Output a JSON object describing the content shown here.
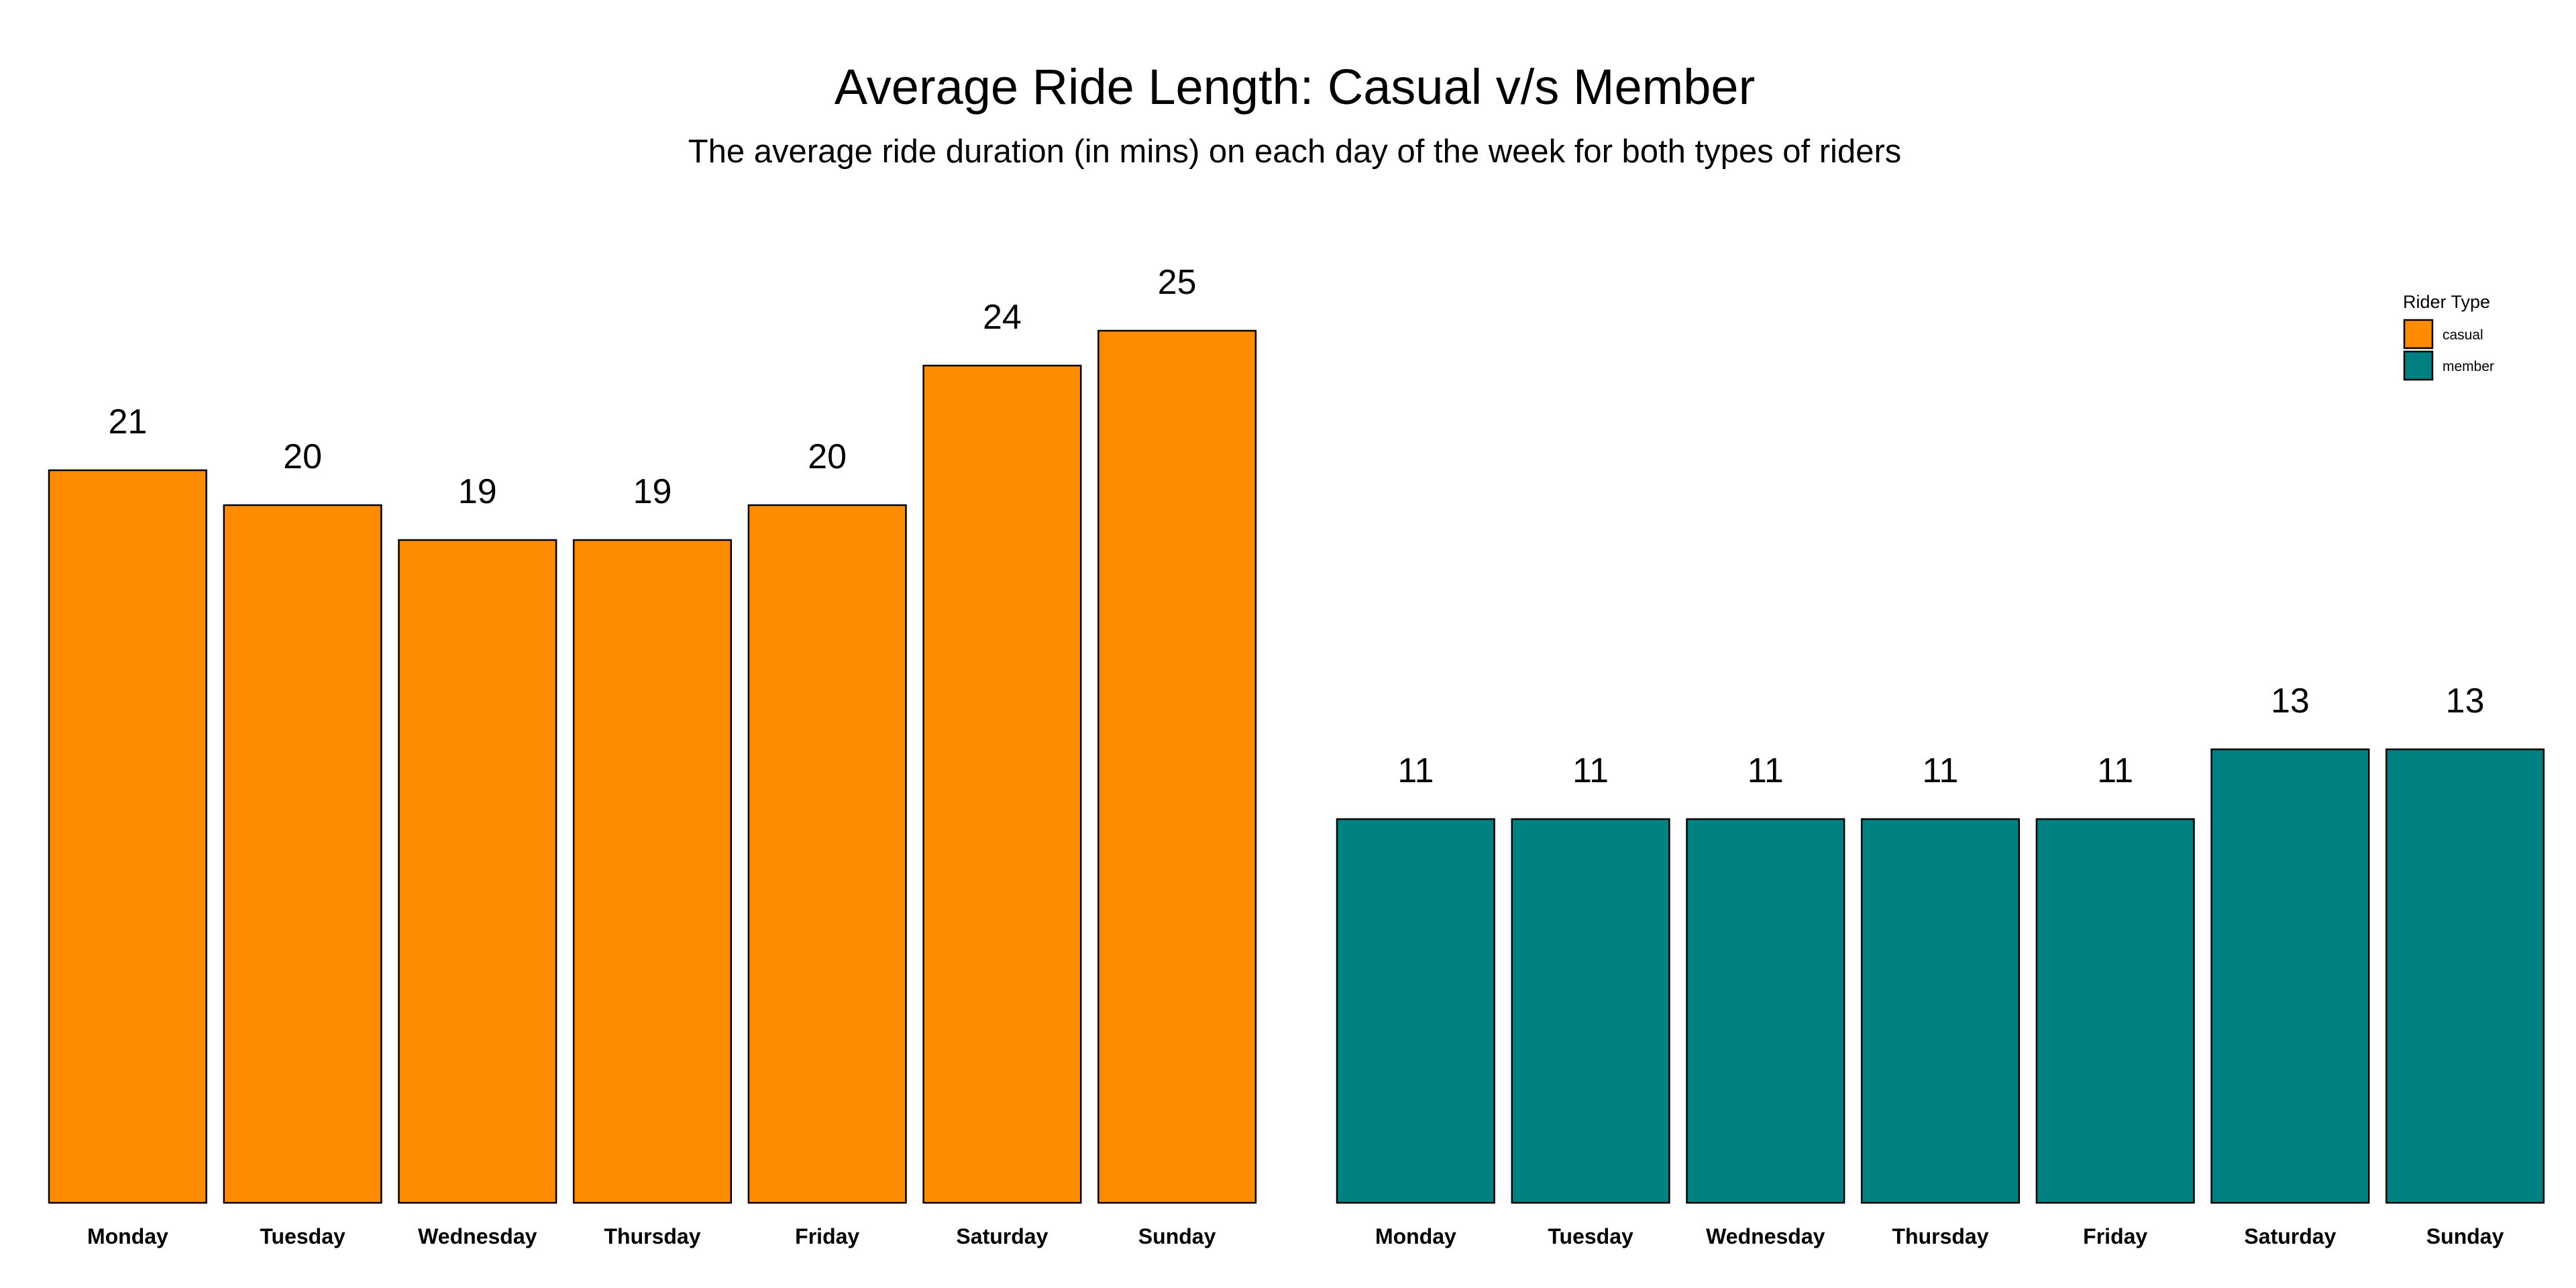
{
  "chart_data": {
    "type": "bar",
    "title": "Average Ride Length: Casual v/s Member",
    "subtitle": "The average ride duration (in mins) on each day of the week for both types of riders",
    "xlabel": "",
    "ylabel": "",
    "ylim": [
      0,
      27
    ],
    "grid": false,
    "categories": [
      "Monday",
      "Tuesday",
      "Wednesday",
      "Thursday",
      "Friday",
      "Saturday",
      "Sunday"
    ],
    "facets": [
      {
        "name": "casual",
        "color": "#FF8C00",
        "values": [
          21,
          20,
          19,
          19,
          20,
          24,
          25
        ],
        "labels": [
          "21",
          "20",
          "19",
          "19",
          "20",
          "24",
          "25"
        ]
      },
      {
        "name": "member",
        "color": "#008080",
        "values": [
          11,
          11,
          11,
          11,
          11,
          13,
          13
        ],
        "labels": [
          "11",
          "11",
          "11",
          "11",
          "11",
          "13",
          "13"
        ]
      }
    ],
    "legend": {
      "title": "Rider Type",
      "placement": "top-right",
      "entries": [
        {
          "label": "casual",
          "color": "#FF8C00"
        },
        {
          "label": "member",
          "color": "#008080"
        }
      ]
    }
  }
}
